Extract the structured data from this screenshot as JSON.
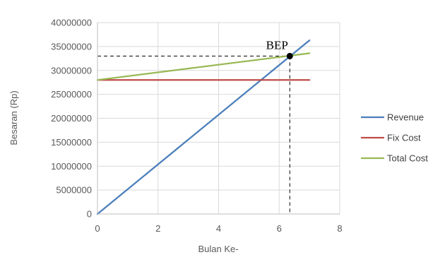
{
  "chart_data": {
    "type": "line",
    "title": "",
    "xlabel": "Bulan Ke-",
    "ylabel": "Besaran (Rp)",
    "xlim": [
      0,
      8
    ],
    "ylim": [
      0,
      40000000
    ],
    "xticks": [
      0,
      2,
      4,
      6,
      8
    ],
    "yticks": [
      0,
      5000000,
      10000000,
      15000000,
      20000000,
      25000000,
      30000000,
      35000000,
      40000000
    ],
    "grid": true,
    "legend_position": "right",
    "series": [
      {
        "name": "Revenue",
        "color": "#4a7ebb",
        "x": [
          0,
          7
        ],
        "y": [
          0,
          36300000
        ]
      },
      {
        "name": "Fix Cost",
        "color": "#be4b48",
        "x": [
          0,
          7
        ],
        "y": [
          28000000,
          28000000
        ]
      },
      {
        "name": "Total Cost",
        "color": "#98b954",
        "x": [
          0,
          7
        ],
        "y": [
          28000000,
          33600000
        ]
      }
    ],
    "annotation": {
      "label": "BEP",
      "x": 6.35,
      "y": 33000000,
      "marker_color": "#000000"
    }
  }
}
